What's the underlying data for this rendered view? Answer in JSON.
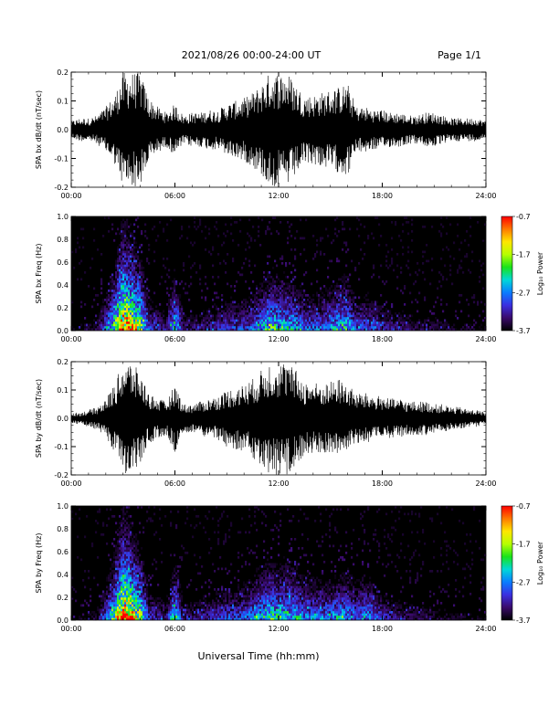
{
  "header": {
    "title": "2021/08/26  00:00-24:00 UT",
    "page": "Page 1/1"
  },
  "footer": {
    "xlabel": "Universal Time (hh:mm)"
  },
  "colors": {
    "trace": "#000000",
    "spectrogram_background": "#000000",
    "colormap": [
      "#000000",
      "#3a0a6a",
      "#3b2fe0",
      "#0a7cff",
      "#00d8d8",
      "#19e31a",
      "#b6ff00",
      "#ffe600",
      "#ff7a00",
      "#ff0000"
    ]
  },
  "chart_data": [
    {
      "type": "line",
      "panel": "bx-waveform",
      "ylabel": "SPA bx dB/dt (nT/sec)",
      "xlabel": "",
      "x_ticks": [
        "00:00",
        "06:00",
        "12:00",
        "18:00",
        "24:00"
      ],
      "y_ticks": [
        "-0.2",
        "-0.1",
        "0.0",
        "0.1",
        "0.2"
      ],
      "xlim_hours": [
        0,
        24
      ],
      "ylim": [
        -0.2,
        0.2
      ],
      "series": [
        {
          "x": [
            0,
            0.5,
            1,
            1.5,
            2,
            2.5,
            3,
            3.5,
            4,
            4.5,
            5,
            5.5,
            6,
            6.5,
            7,
            7.5,
            8,
            8.5,
            9,
            9.5,
            10,
            10.5,
            11,
            11.5,
            12,
            12.5,
            13,
            13.5,
            14,
            14.5,
            15,
            15.5,
            16,
            16.5,
            17,
            17.5,
            18,
            18.5,
            19,
            19.5,
            20,
            20.5,
            21,
            21.5,
            22,
            22.5,
            23,
            23.5,
            24
          ],
          "envelope": [
            0.03,
            0.04,
            0.04,
            0.05,
            0.08,
            0.12,
            0.2,
            0.2,
            0.2,
            0.11,
            0.08,
            0.06,
            0.09,
            0.05,
            0.06,
            0.06,
            0.07,
            0.07,
            0.09,
            0.1,
            0.11,
            0.13,
            0.16,
            0.2,
            0.2,
            0.2,
            0.16,
            0.12,
            0.12,
            0.13,
            0.14,
            0.15,
            0.16,
            0.08,
            0.08,
            0.07,
            0.07,
            0.06,
            0.06,
            0.05,
            0.05,
            0.06,
            0.06,
            0.05,
            0.04,
            0.04,
            0.04,
            0.04,
            0.03
          ]
        }
      ]
    },
    {
      "type": "heatmap",
      "panel": "bx-spectrogram",
      "ylabel": "SPA bx Freq (Hz)",
      "x_ticks": [
        "00:00",
        "06:00",
        "12:00",
        "18:00",
        "24:00"
      ],
      "y_ticks": [
        "0.0",
        "0.2",
        "0.4",
        "0.6",
        "0.8",
        "1.0"
      ],
      "xlim_hours": [
        0,
        24
      ],
      "ylim": [
        0,
        1.0
      ],
      "colorbar": {
        "label": "Log₁₀ Power",
        "ticks": [
          "-0.7",
          "-1.7",
          "-2.7",
          "-3.7"
        ],
        "range": [
          -3.7,
          -0.7
        ]
      },
      "activity_hours": [
        0,
        0.5,
        1,
        1.5,
        2,
        2.5,
        3,
        3.5,
        4,
        4.5,
        5,
        5.5,
        6,
        6.5,
        7,
        7.5,
        8,
        8.5,
        9,
        9.5,
        10,
        10.5,
        11,
        11.5,
        12,
        12.5,
        13,
        13.5,
        14,
        14.5,
        15,
        15.5,
        16,
        16.5,
        17,
        17.5,
        18,
        18.5,
        19,
        19.5,
        20,
        20.5,
        21,
        21.5,
        22,
        22.5,
        23,
        23.5,
        24
      ],
      "activity": [
        0.1,
        0.12,
        0.12,
        0.15,
        0.35,
        0.6,
        1.0,
        0.85,
        0.7,
        0.3,
        0.25,
        0.2,
        0.55,
        0.2,
        0.2,
        0.2,
        0.25,
        0.25,
        0.3,
        0.3,
        0.3,
        0.35,
        0.45,
        0.55,
        0.5,
        0.5,
        0.45,
        0.35,
        0.35,
        0.35,
        0.4,
        0.5,
        0.5,
        0.3,
        0.35,
        0.3,
        0.25,
        0.2,
        0.2,
        0.18,
        0.16,
        0.16,
        0.15,
        0.14,
        0.12,
        0.12,
        0.11,
        0.1,
        0.1
      ]
    },
    {
      "type": "line",
      "panel": "by-waveform",
      "ylabel": "SPA by dB/dt (nT/sec)",
      "x_ticks": [
        "00:00",
        "06:00",
        "12:00",
        "18:00",
        "24:00"
      ],
      "y_ticks": [
        "-0.2",
        "-0.1",
        "0.0",
        "0.1",
        "0.2"
      ],
      "xlim_hours": [
        0,
        24
      ],
      "ylim": [
        -0.2,
        0.2
      ],
      "series": [
        {
          "x": [
            0,
            0.5,
            1,
            1.5,
            2,
            2.5,
            3,
            3.5,
            4,
            4.5,
            5,
            5.5,
            6,
            6.5,
            7,
            7.5,
            8,
            8.5,
            9,
            9.5,
            10,
            10.5,
            11,
            11.5,
            12,
            12.5,
            13,
            13.5,
            14,
            14.5,
            15,
            15.5,
            16,
            16.5,
            17,
            17.5,
            18,
            18.5,
            19,
            19.5,
            20,
            20.5,
            21,
            21.5,
            22,
            22.5,
            23,
            23.5,
            24
          ],
          "envelope": [
            0.02,
            0.02,
            0.03,
            0.04,
            0.07,
            0.12,
            0.2,
            0.2,
            0.16,
            0.09,
            0.07,
            0.06,
            0.12,
            0.05,
            0.05,
            0.06,
            0.07,
            0.08,
            0.1,
            0.11,
            0.12,
            0.14,
            0.17,
            0.2,
            0.2,
            0.2,
            0.17,
            0.13,
            0.13,
            0.12,
            0.13,
            0.14,
            0.12,
            0.09,
            0.09,
            0.08,
            0.08,
            0.07,
            0.07,
            0.06,
            0.06,
            0.06,
            0.05,
            0.05,
            0.04,
            0.04,
            0.03,
            0.03,
            0.02
          ]
        }
      ]
    },
    {
      "type": "heatmap",
      "panel": "by-spectrogram",
      "ylabel": "SPA by Freq (Hz)",
      "x_ticks": [
        "00:00",
        "06:00",
        "12:00",
        "18:00",
        "24:00"
      ],
      "y_ticks": [
        "0.0",
        "0.2",
        "0.4",
        "0.6",
        "0.8",
        "1.0"
      ],
      "xlim_hours": [
        0,
        24
      ],
      "ylim": [
        0,
        1.0
      ],
      "colorbar": {
        "label": "Log₁₀ Power",
        "ticks": [
          "-0.7",
          "-1.7",
          "-2.7",
          "-3.7"
        ],
        "range": [
          -3.7,
          -0.7
        ]
      },
      "activity_hours": [
        0,
        0.5,
        1,
        1.5,
        2,
        2.5,
        3,
        3.5,
        4,
        4.5,
        5,
        5.5,
        6,
        6.5,
        7,
        7.5,
        8,
        8.5,
        9,
        9.5,
        10,
        10.5,
        11,
        11.5,
        12,
        12.5,
        13,
        13.5,
        14,
        14.5,
        15,
        15.5,
        16,
        16.5,
        17,
        17.5,
        18,
        18.5,
        19,
        19.5,
        20,
        20.5,
        21,
        21.5,
        22,
        22.5,
        23,
        23.5,
        24
      ],
      "activity": [
        0.1,
        0.1,
        0.12,
        0.15,
        0.35,
        0.6,
        1.0,
        0.85,
        0.65,
        0.3,
        0.25,
        0.2,
        0.55,
        0.2,
        0.2,
        0.22,
        0.25,
        0.28,
        0.3,
        0.32,
        0.35,
        0.4,
        0.5,
        0.55,
        0.5,
        0.55,
        0.5,
        0.4,
        0.4,
        0.38,
        0.4,
        0.45,
        0.45,
        0.35,
        0.45,
        0.35,
        0.28,
        0.22,
        0.2,
        0.18,
        0.16,
        0.16,
        0.15,
        0.14,
        0.12,
        0.12,
        0.11,
        0.1,
        0.1
      ]
    }
  ]
}
